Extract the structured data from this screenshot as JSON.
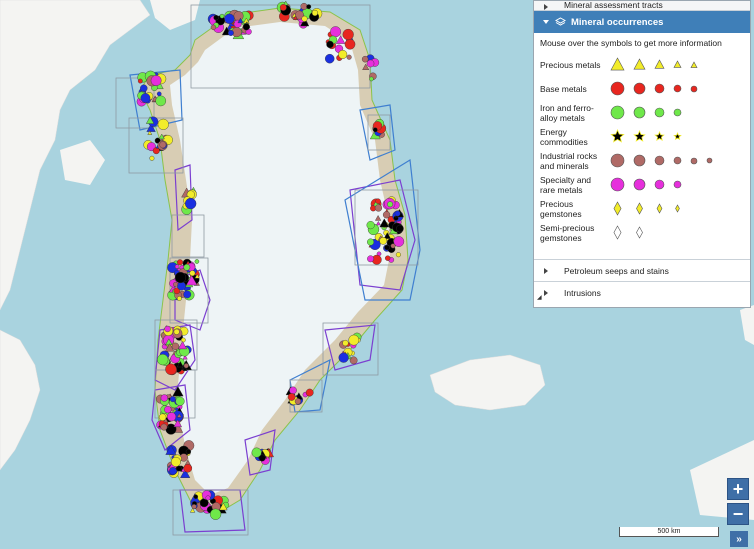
{
  "legend": {
    "collapsed_top_label": "Mineral assessment tracts",
    "header_title": "Mineral occurrences",
    "hint": "Mouse over the symbols to get more information",
    "categories": [
      {
        "label": "Precious metals",
        "shape": "triangle",
        "color": "#f2ec2a",
        "count": 5,
        "star": true
      },
      {
        "label": "Base metals",
        "shape": "circle",
        "color": "#e8261f",
        "count": 5,
        "star": true
      },
      {
        "label": "Iron and ferro-alloy metals",
        "shape": "circle",
        "color": "#6fe84a",
        "count": 4,
        "star": false
      },
      {
        "label": "Energy commodities",
        "shape": "star",
        "color": "#000000",
        "count": 4,
        "star": true
      },
      {
        "label": "Industrial rocks and minerals",
        "shape": "circle",
        "color": "#b06a66",
        "count": 6,
        "star": true
      },
      {
        "label": "Specialty and rare metals",
        "shape": "circle",
        "color": "#e62fdc",
        "count": 4,
        "star": false
      },
      {
        "label": "Precious gemstones",
        "shape": "diamond",
        "color": "#f2ec2a",
        "count": 4,
        "star": true
      },
      {
        "label": "Semi-precious gemstones",
        "shape": "diamond",
        "color": "#ffffff",
        "count": 2,
        "star": false
      }
    ],
    "petroleum_label": "Petroleum seeps and stains",
    "intrusions_label": "Intrusions"
  },
  "controls": {
    "zoom_in": "+",
    "zoom_out": "−",
    "expand": "»"
  },
  "scale_label": "500 km",
  "colors": {
    "ocean": "#a9d3df",
    "land": "#f4f4f2",
    "ice": "#eef4f6",
    "accent": "#3f7fb8"
  }
}
